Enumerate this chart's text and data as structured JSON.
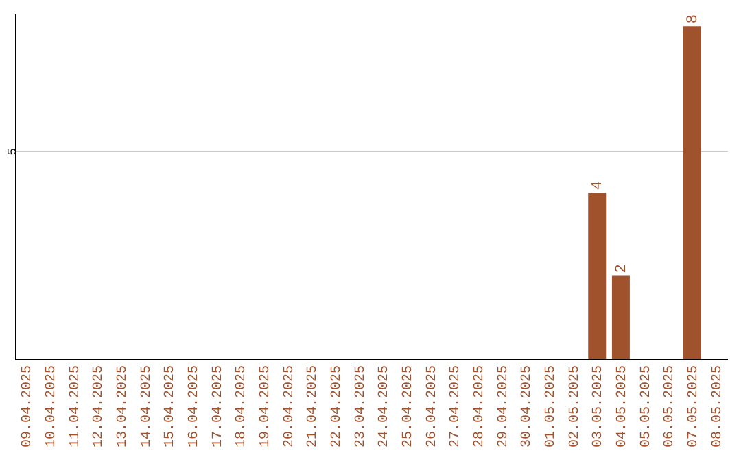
{
  "chart_data": {
    "type": "bar",
    "categories": [
      "09.04.2025",
      "10.04.2025",
      "11.04.2025",
      "12.04.2025",
      "13.04.2025",
      "14.04.2025",
      "15.04.2025",
      "16.04.2025",
      "17.04.2025",
      "18.04.2025",
      "19.04.2025",
      "20.04.2025",
      "21.04.2025",
      "22.04.2025",
      "23.04.2025",
      "24.04.2025",
      "25.04.2025",
      "26.04.2025",
      "27.04.2025",
      "28.04.2025",
      "29.04.2025",
      "30.04.2025",
      "01.05.2025",
      "02.05.2025",
      "03.05.2025",
      "04.05.2025",
      "05.05.2025",
      "06.05.2025",
      "07.05.2025",
      "08.05.2025"
    ],
    "values": [
      null,
      null,
      null,
      null,
      null,
      null,
      null,
      null,
      null,
      null,
      null,
      null,
      null,
      null,
      null,
      null,
      null,
      null,
      null,
      null,
      null,
      null,
      null,
      null,
      4,
      2,
      null,
      null,
      8,
      null
    ],
    "color": "#a0522d",
    "ylim": [
      0,
      8.3
    ],
    "yticks": [
      5
    ],
    "grid": "y",
    "data_labels": true
  }
}
